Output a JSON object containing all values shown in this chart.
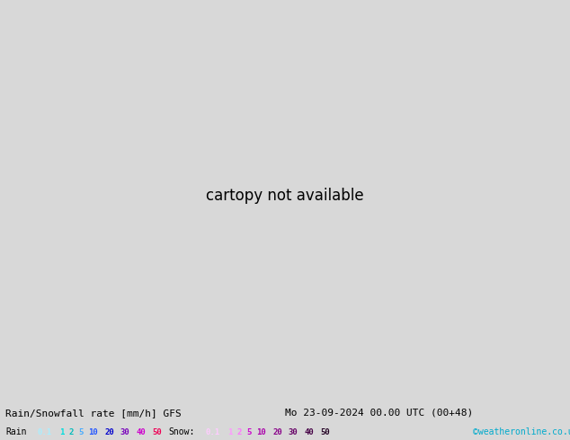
{
  "title_left": "Rain/Snowfall rate [mm/h] GFS",
  "title_right": "Mo 23-09-2024 00.00 UTC (00+48)",
  "credit": "©weatheronline.co.uk",
  "bg_color": "#d8d8d8",
  "land_color": "#c8ecc0",
  "sea_color": "#d8d8d8",
  "border_color": "#888888",
  "rain_cyan": "#aaf8f8",
  "rain_blue": "#44aaff",
  "rain_darkblue": "#2266ff",
  "rain_legend_vals": [
    "0.1",
    "1",
    "2",
    "5",
    "10",
    "20",
    "30",
    "40",
    "50"
  ],
  "rain_legend_colors": [
    "#aaeeff",
    "#00dddd",
    "#00bbbb",
    "#44aaff",
    "#2255ff",
    "#0000cc",
    "#7700bb",
    "#cc00cc",
    "#ee0055"
  ],
  "snow_legend_vals": [
    "0.1",
    "1",
    "2",
    "5",
    "10",
    "20",
    "30",
    "40",
    "50"
  ],
  "snow_legend_colors": [
    "#ffccff",
    "#ff99ff",
    "#ff77ff",
    "#cc00cc",
    "#aa00aa",
    "#880088",
    "#660066",
    "#440044",
    "#220022"
  ],
  "extent": [
    -25,
    35,
    42,
    72
  ]
}
